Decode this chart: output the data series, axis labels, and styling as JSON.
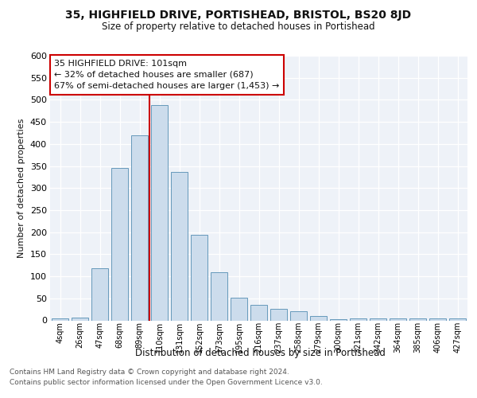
{
  "title": "35, HIGHFIELD DRIVE, PORTISHEAD, BRISTOL, BS20 8JD",
  "subtitle": "Size of property relative to detached houses in Portishead",
  "xlabel": "Distribution of detached houses by size in Portishead",
  "ylabel": "Number of detached properties",
  "bar_color": "#ccdcec",
  "bar_edge_color": "#6699bb",
  "background_color": "#eef2f8",
  "grid_color": "#ffffff",
  "categories": [
    "4sqm",
    "26sqm",
    "47sqm",
    "68sqm",
    "89sqm",
    "110sqm",
    "131sqm",
    "152sqm",
    "173sqm",
    "195sqm",
    "216sqm",
    "237sqm",
    "258sqm",
    "279sqm",
    "300sqm",
    "321sqm",
    "342sqm",
    "364sqm",
    "385sqm",
    "406sqm",
    "427sqm"
  ],
  "values": [
    5,
    7,
    118,
    345,
    420,
    488,
    337,
    194,
    110,
    51,
    36,
    27,
    20,
    10,
    3,
    5,
    4,
    4,
    4,
    5,
    4
  ],
  "ylim": [
    0,
    600
  ],
  "yticks": [
    0,
    50,
    100,
    150,
    200,
    250,
    300,
    350,
    400,
    450,
    500,
    550,
    600
  ],
  "vline_color": "#cc0000",
  "annotation_line1": "35 HIGHFIELD DRIVE: 101sqm",
  "annotation_line2": "← 32% of detached houses are smaller (687)",
  "annotation_line3": "67% of semi-detached houses are larger (1,453) →",
  "footer1": "Contains HM Land Registry data © Crown copyright and database right 2024.",
  "footer2": "Contains public sector information licensed under the Open Government Licence v3.0."
}
